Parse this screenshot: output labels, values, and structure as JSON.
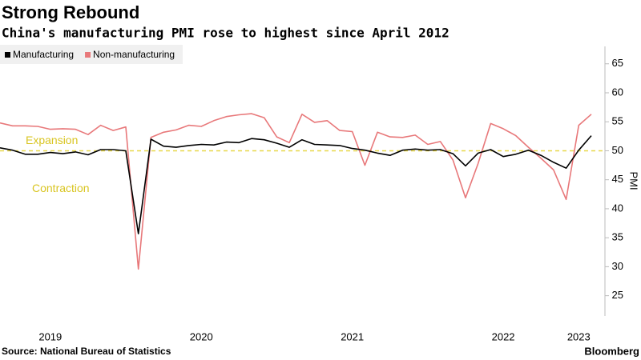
{
  "chart_data": {
    "type": "line",
    "title": "Strong Rebound",
    "subtitle": "China's manufacturing PMI rose to highest since April 2012",
    "y_label": "PMI",
    "source": "Source: National Bureau of Statistics",
    "brand": "Bloomberg",
    "categories": [
      null,
      null,
      null,
      null,
      "2019",
      null,
      null,
      null,
      null,
      null,
      null,
      null,
      null,
      null,
      null,
      null,
      "2020",
      null,
      null,
      null,
      null,
      null,
      null,
      null,
      null,
      null,
      null,
      null,
      "2021",
      null,
      null,
      null,
      null,
      null,
      null,
      null,
      null,
      null,
      null,
      null,
      "2022",
      null,
      null,
      null,
      null,
      null,
      "2023",
      null
    ],
    "series": [
      {
        "name": "Manufacturing",
        "color": "#000000",
        "values": [
          50.5,
          50.1,
          49.4,
          49.4,
          49.7,
          49.5,
          49.8,
          49.3,
          50.2,
          50.2,
          50.0,
          35.7,
          52.0,
          50.8,
          50.6,
          50.9,
          51.1,
          51.0,
          51.5,
          51.4,
          52.1,
          51.9,
          51.3,
          50.6,
          51.9,
          51.1,
          51.0,
          50.9,
          50.4,
          50.1,
          49.6,
          49.2,
          50.1,
          50.3,
          50.1,
          50.2,
          49.5,
          47.4,
          49.6,
          50.2,
          49.0,
          49.4,
          50.1,
          49.2,
          48.0,
          47.0,
          50.1,
          52.6
        ]
      },
      {
        "name": "Non-manufacturing",
        "color": "#e8787a",
        "values": [
          54.8,
          54.3,
          54.3,
          54.2,
          53.7,
          53.8,
          53.7,
          52.8,
          54.4,
          53.5,
          54.1,
          29.6,
          52.3,
          53.2,
          53.6,
          54.4,
          54.2,
          55.2,
          55.9,
          56.2,
          56.4,
          55.7,
          52.4,
          51.4,
          56.3,
          54.9,
          55.2,
          53.5,
          53.3,
          47.5,
          53.2,
          52.4,
          52.3,
          52.7,
          51.1,
          51.6,
          48.4,
          41.9,
          47.8,
          54.7,
          53.8,
          52.6,
          50.6,
          48.7,
          46.7,
          41.6,
          54.4,
          56.3
        ]
      }
    ],
    "reference_line": {
      "value": 50,
      "color": "#e8d84a",
      "labels": [
        "Expansion",
        "Contraction"
      ]
    },
    "ylim": [
      21.5,
      68
    ],
    "yticks": [
      25,
      30,
      35,
      40,
      45,
      50,
      55,
      60,
      65
    ],
    "grid": false
  }
}
